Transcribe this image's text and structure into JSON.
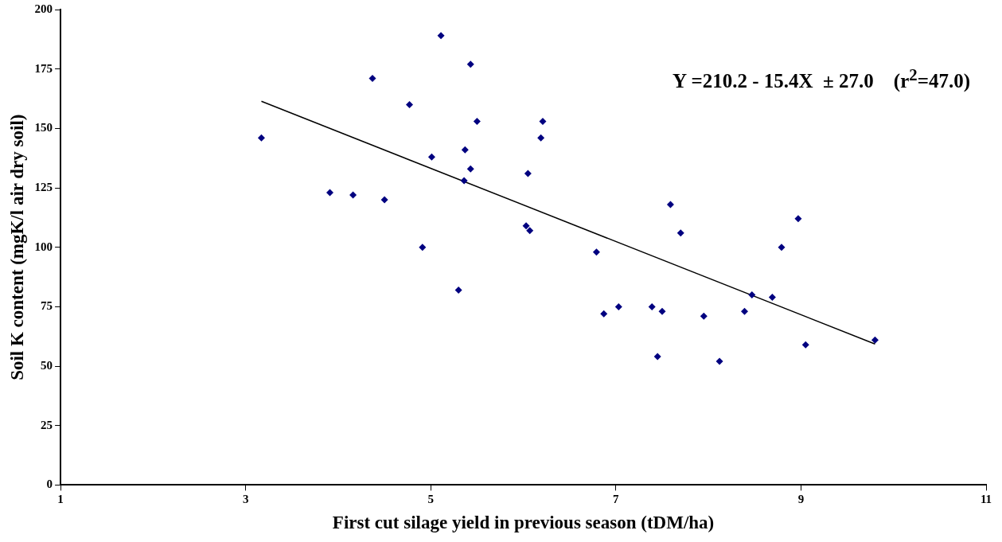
{
  "chart_data": {
    "type": "scatter",
    "xlabel": "First cut silage yield in previous season (tDM/ha)",
    "ylabel": "Soil K content (mgK/l air dry soil)",
    "annotations": [
      "Y =210.2 - 15.4X  ± 27.0    (r$^{2}$=47.0)"
    ],
    "xlim": [
      1,
      11
    ],
    "xticks": [
      1,
      3,
      5,
      7,
      9,
      11
    ],
    "ylim": [
      0,
      200
    ],
    "yticks": [
      0,
      25,
      50,
      75,
      100,
      125,
      150,
      175,
      200
    ],
    "grid": false,
    "marker": "diamond",
    "series": [
      {
        "type": "scatter",
        "color": "#000080",
        "x": [
          5.11,
          5.43,
          4.37,
          4.77,
          5.5,
          6.21,
          3.17,
          6.19,
          5.37,
          5.01,
          5.43,
          6.05,
          5.36,
          3.91,
          4.16,
          4.5,
          6.03,
          6.07,
          4.91,
          5.3,
          7.59,
          8.97,
          7.7,
          8.79,
          6.79,
          8.47,
          8.69,
          7.03,
          7.39,
          6.87,
          7.5,
          8.39,
          7.95,
          9.8,
          9.05,
          7.45,
          8.12
        ],
        "values": [
          189,
          177,
          171,
          160,
          153,
          153,
          146,
          146,
          141,
          138,
          133,
          131,
          128,
          123,
          122,
          120,
          109,
          107,
          100,
          82,
          118,
          112,
          106,
          100,
          98,
          80,
          79,
          75,
          75,
          72,
          73,
          73,
          71,
          61,
          59,
          54,
          52
        ]
      },
      {
        "type": "line",
        "color": "#000000",
        "marker": "none",
        "line_style": "solid",
        "x": [
          3.17,
          9.8
        ],
        "values": [
          161.4,
          59.3
        ]
      }
    ]
  }
}
